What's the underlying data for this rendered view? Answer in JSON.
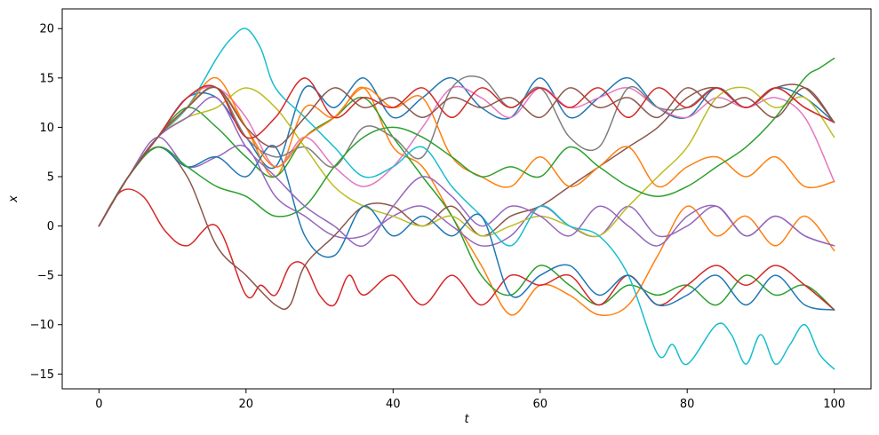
{
  "chart_data": {
    "type": "line",
    "title": "",
    "xlabel": "t",
    "ylabel": "x",
    "xlim": [
      -5,
      105
    ],
    "ylim": [
      -16.5,
      22
    ],
    "x_ticks": [
      0,
      20,
      40,
      60,
      80,
      100
    ],
    "y_ticks": [
      -15,
      -10,
      -5,
      0,
      5,
      10,
      15,
      20
    ],
    "grid": false,
    "legend": "none",
    "palette": [
      "#1f77b4",
      "#ff7f0e",
      "#2ca02c",
      "#d62728",
      "#9467bd",
      "#8c564b",
      "#e377c2",
      "#7f7f7f",
      "#bcbd22",
      "#17becf"
    ],
    "series": [
      {
        "color": "#1f77b4",
        "x": [
          0,
          4,
          8,
          12,
          16,
          20,
          24,
          28,
          32,
          36,
          40,
          44,
          48,
          52,
          56,
          60,
          64,
          68,
          72,
          76,
          80,
          84,
          88,
          92,
          96,
          100
        ],
        "y": [
          0,
          5,
          9,
          13,
          13,
          9,
          6,
          14,
          12,
          15,
          11,
          13,
          15,
          12,
          11,
          15,
          11,
          13,
          15,
          12,
          11,
          14,
          12,
          14,
          13,
          10.5
        ]
      },
      {
        "color": "#ff7f0e",
        "x": [
          0,
          4,
          8,
          12,
          16,
          20,
          24,
          28,
          32,
          36,
          40,
          44,
          48,
          52,
          56,
          60,
          64,
          68,
          72,
          76,
          80,
          84,
          88,
          92,
          96,
          100
        ],
        "y": [
          0,
          5,
          9,
          13,
          14,
          10,
          5,
          12,
          11,
          14,
          8,
          6,
          1,
          -4,
          -9,
          -6,
          -7,
          -9,
          -8,
          -3,
          2,
          -1,
          1,
          -2,
          1,
          -2.5
        ]
      },
      {
        "color": "#2ca02c",
        "x": [
          0,
          4,
          8,
          12,
          16,
          20,
          24,
          28,
          32,
          36,
          40,
          44,
          48,
          52,
          56,
          60,
          64,
          68,
          72,
          76,
          80,
          84,
          88,
          92,
          96,
          100
        ],
        "y": [
          0,
          5,
          9,
          12,
          10,
          7,
          5,
          9,
          11,
          13,
          9,
          5,
          1,
          -5,
          -7,
          -4,
          -6,
          -8,
          -6,
          -7,
          -6,
          -8,
          -5,
          -7,
          -6,
          -8.5
        ]
      },
      {
        "color": "#d62728",
        "x": [
          0,
          3,
          6,
          9,
          12,
          16,
          20,
          22,
          24,
          26,
          28,
          30,
          32,
          34,
          36,
          40,
          44,
          48,
          52,
          56,
          60,
          64,
          68,
          72,
          76,
          80,
          84,
          88,
          92,
          96,
          100
        ],
        "y": [
          0,
          3.5,
          3,
          -0.5,
          -2,
          0,
          -7,
          -6,
          -7,
          -4,
          -4,
          -7,
          -8,
          -5,
          -7,
          -5,
          -8,
          -5,
          -8,
          -5,
          -6,
          -5,
          -8,
          -5,
          -8,
          -6,
          -4,
          -6,
          -4,
          -6,
          -8.5
        ]
      },
      {
        "color": "#9467bd",
        "x": [
          0,
          4,
          8,
          12,
          16,
          20,
          24,
          28,
          32,
          36,
          40,
          44,
          48,
          52,
          56,
          60,
          64,
          68,
          72,
          76,
          80,
          84,
          88,
          92,
          96,
          100
        ],
        "y": [
          0,
          5,
          9,
          6,
          7,
          8,
          3,
          1,
          -1,
          -1,
          1,
          2,
          0,
          -2,
          -1,
          2,
          0,
          -1,
          2,
          -1,
          0,
          2,
          -1,
          1,
          -1,
          -2
        ]
      },
      {
        "color": "#8c564b",
        "x": [
          0,
          4,
          8,
          12,
          16,
          20,
          24,
          26,
          28,
          32,
          36,
          40,
          44,
          48,
          52,
          56,
          60,
          64,
          68,
          72,
          76,
          80,
          84,
          88,
          92,
          96,
          100
        ],
        "y": [
          0,
          5,
          8,
          5,
          -2,
          -5,
          -8,
          -8,
          -4,
          -1,
          2,
          2,
          0,
          2,
          -1,
          1,
          2,
          4,
          6,
          8,
          10,
          13,
          14,
          12,
          14,
          14,
          10.5
        ]
      },
      {
        "color": "#e377c2",
        "x": [
          0,
          4,
          8,
          12,
          16,
          20,
          24,
          28,
          32,
          36,
          40,
          44,
          48,
          52,
          56,
          60,
          64,
          68,
          72,
          76,
          80,
          84,
          88,
          92,
          96,
          100
        ],
        "y": [
          0,
          5,
          9,
          13,
          14,
          11,
          6,
          9,
          6,
          4,
          6,
          10,
          14,
          13,
          11,
          14,
          12,
          13,
          14,
          12,
          11,
          13,
          12,
          13,
          11,
          4.5
        ]
      },
      {
        "color": "#7f7f7f",
        "x": [
          0,
          4,
          8,
          12,
          16,
          20,
          24,
          28,
          32,
          36,
          40,
          44,
          48,
          52,
          56,
          60,
          64,
          68,
          72,
          76,
          80,
          84,
          88,
          92,
          96,
          100
        ],
        "y": [
          0,
          5,
          9,
          12,
          14,
          9,
          7,
          8,
          6,
          10,
          9,
          7,
          14,
          15,
          12,
          14,
          9,
          8,
          14,
          12,
          12,
          14,
          12,
          14,
          12,
          10.5
        ]
      },
      {
        "color": "#bcbd22",
        "x": [
          0,
          4,
          8,
          12,
          16,
          20,
          24,
          28,
          32,
          36,
          40,
          44,
          48,
          52,
          56,
          60,
          64,
          68,
          72,
          76,
          80,
          84,
          88,
          92,
          96,
          100
        ],
        "y": [
          0,
          5,
          9,
          11,
          12,
          14,
          12,
          8,
          4,
          2,
          1,
          0,
          1,
          -1,
          0,
          1,
          0,
          -1,
          2,
          5,
          8,
          13,
          14,
          12,
          13,
          9
        ]
      },
      {
        "color": "#17becf",
        "x": [
          0,
          4,
          8,
          12,
          16,
          18,
          20,
          22,
          24,
          28,
          32,
          36,
          40,
          44,
          48,
          52,
          56,
          60,
          64,
          68,
          72,
          76,
          78,
          80,
          84,
          86,
          88,
          90,
          92,
          94,
          96,
          98,
          100
        ],
        "y": [
          0,
          5,
          9,
          12,
          17,
          19,
          20,
          18,
          14,
          11,
          8,
          5,
          6,
          8,
          4,
          1,
          -2,
          2,
          0,
          -1,
          -5,
          -13,
          -12,
          -14,
          -10,
          -11,
          -14,
          -11,
          -14,
          -12,
          -10,
          -13,
          -14.5
        ]
      },
      {
        "color": "#1f77b4",
        "x": [
          0,
          4,
          8,
          12,
          16,
          20,
          24,
          28,
          32,
          36,
          40,
          44,
          48,
          52,
          56,
          60,
          64,
          68,
          72,
          76,
          80,
          84,
          88,
          92,
          96,
          100
        ],
        "y": [
          0,
          5,
          8,
          6,
          7,
          5,
          8,
          -1,
          -3,
          2,
          -1,
          1,
          -1,
          1,
          -7,
          -5,
          -4,
          -7,
          -5,
          -8,
          -7,
          -5,
          -8,
          -5,
          -8,
          -8.5
        ]
      },
      {
        "color": "#ff7f0e",
        "x": [
          0,
          4,
          8,
          12,
          16,
          20,
          24,
          28,
          32,
          36,
          40,
          44,
          48,
          52,
          56,
          60,
          64,
          68,
          72,
          76,
          80,
          84,
          88,
          92,
          96,
          100
        ],
        "y": [
          0,
          5,
          9,
          12,
          15,
          10,
          6,
          9,
          11,
          14,
          12,
          13,
          7,
          5,
          4,
          7,
          4,
          6,
          8,
          4,
          6,
          7,
          5,
          7,
          4,
          4.5
        ]
      },
      {
        "color": "#2ca02c",
        "x": [
          0,
          4,
          8,
          12,
          16,
          20,
          24,
          28,
          32,
          36,
          40,
          44,
          48,
          52,
          56,
          60,
          64,
          68,
          72,
          76,
          80,
          84,
          88,
          92,
          96,
          98,
          100
        ],
        "y": [
          0,
          5,
          8,
          6,
          4,
          3,
          1,
          2,
          6,
          9,
          10,
          9,
          7,
          5,
          6,
          5,
          8,
          6,
          4,
          3,
          4,
          6,
          8,
          11,
          15,
          16,
          17
        ]
      },
      {
        "color": "#d62728",
        "x": [
          0,
          4,
          8,
          12,
          16,
          20,
          24,
          28,
          32,
          36,
          40,
          44,
          48,
          52,
          56,
          60,
          64,
          68,
          72,
          76,
          80,
          84,
          88,
          92,
          96,
          100
        ],
        "y": [
          0,
          5,
          9,
          13,
          14,
          9,
          11,
          15,
          11,
          13,
          12,
          14,
          11,
          14,
          12,
          14,
          12,
          14,
          11,
          14,
          12,
          14,
          12,
          14,
          12,
          10.5
        ]
      },
      {
        "color": "#9467bd",
        "x": [
          0,
          4,
          8,
          12,
          16,
          20,
          24,
          28,
          32,
          36,
          40,
          44,
          48,
          52,
          56,
          60,
          64,
          68,
          72,
          76,
          80,
          84,
          88,
          92,
          96,
          100
        ],
        "y": [
          0,
          5,
          9,
          11,
          13,
          8,
          5,
          2,
          0,
          -2,
          2,
          5,
          3,
          0,
          2,
          1,
          -1,
          2,
          0,
          -2,
          1,
          2,
          -1,
          1,
          -1,
          -2
        ]
      },
      {
        "color": "#8c564b",
        "x": [
          0,
          4,
          8,
          12,
          16,
          20,
          24,
          28,
          32,
          36,
          40,
          44,
          48,
          52,
          56,
          60,
          64,
          68,
          72,
          76,
          80,
          84,
          88,
          92,
          96,
          100
        ],
        "y": [
          0,
          5,
          9,
          12,
          14,
          10,
          8,
          11,
          14,
          12,
          13,
          11,
          13,
          12,
          13,
          11,
          14,
          12,
          13,
          11,
          14,
          12,
          13,
          11,
          14,
          10.5
        ]
      }
    ]
  }
}
